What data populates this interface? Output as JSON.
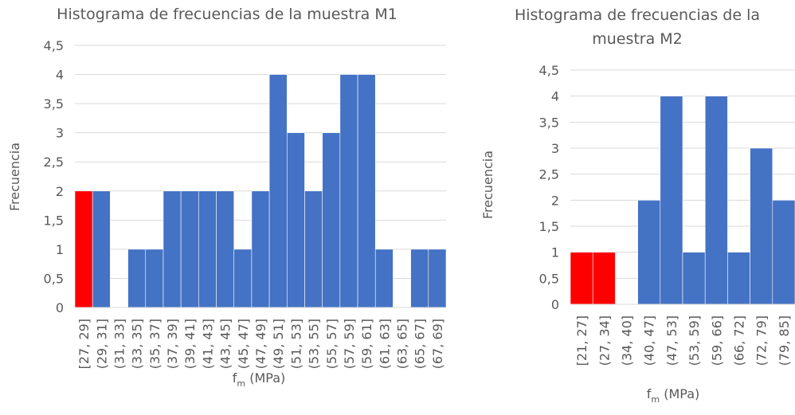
{
  "chart_data": [
    {
      "type": "bar",
      "title": "Histograma de frecuencias de la muestra M1",
      "categories": [
        "[27, 29]",
        "(29, 31]",
        "(31, 33]",
        "(33, 35]",
        "(35, 37]",
        "(37, 39]",
        "(39, 41]",
        "(41, 43]",
        "(43, 45]",
        "(45, 47]",
        "(47, 49]",
        "(49, 51]",
        "(51, 53]",
        "(53, 55]",
        "(55, 57]",
        "(57, 59]",
        "(59, 61]",
        "(61, 63]",
        "(63, 65]",
        "(65, 67]",
        "(67, 69]"
      ],
      "values": [
        2,
        2,
        0,
        1,
        1,
        2,
        2,
        2,
        2,
        1,
        2,
        4,
        3,
        2,
        3,
        4,
        4,
        1,
        0,
        1,
        1
      ],
      "colors": [
        "#ff0000",
        "#4472c4",
        "#4472c4",
        "#4472c4",
        "#4472c4",
        "#4472c4",
        "#4472c4",
        "#4472c4",
        "#4472c4",
        "#4472c4",
        "#4472c4",
        "#4472c4",
        "#4472c4",
        "#4472c4",
        "#4472c4",
        "#4472c4",
        "#4472c4",
        "#4472c4",
        "#4472c4",
        "#4472c4",
        "#4472c4"
      ],
      "x_label": [
        "f",
        "m",
        " (MPa)"
      ],
      "y_label": "Frecuencia",
      "ylim": [
        0,
        4.5
      ],
      "yticks": [
        0,
        {
          "value": 0.5,
          "label": "0,5"
        },
        1,
        {
          "value": 1.5,
          "label": "1,5"
        },
        2,
        {
          "value": 2.5,
          "label": "2,5"
        },
        3,
        {
          "value": 3.5,
          "label": "3,5"
        },
        4,
        {
          "value": 4.5,
          "label": "4,5"
        }
      ],
      "grid": true
    },
    {
      "type": "bar",
      "title": "Histograma de frecuencias de la muestra M2",
      "categories": [
        "[21, 27]",
        "(27, 34]",
        "(34, 40]",
        "(40, 47]",
        "(47, 53]",
        "(53, 59]",
        "(59, 66]",
        "(66, 72]",
        "(72, 79]",
        "(79, 85]"
      ],
      "values": [
        1,
        1,
        0,
        2,
        4,
        1,
        4,
        1,
        3,
        2
      ],
      "colors": [
        "#ff0000",
        "#ff0000",
        "#4472c4",
        "#4472c4",
        "#4472c4",
        "#4472c4",
        "#4472c4",
        "#4472c4",
        "#4472c4",
        "#4472c4"
      ],
      "x_label": [
        "f",
        "m",
        " (MPa)"
      ],
      "y_label": "Frecuencia",
      "ylim": [
        0,
        4.5
      ],
      "yticks": [
        0,
        {
          "value": 0.5,
          "label": "0,5"
        },
        1,
        {
          "value": 1.5,
          "label": "1,5"
        },
        2,
        {
          "value": 2.5,
          "label": "2,5"
        },
        3,
        {
          "value": 3.5,
          "label": "3,5"
        },
        4,
        {
          "value": 4.5,
          "label": "4,5"
        }
      ],
      "grid": true
    }
  ]
}
